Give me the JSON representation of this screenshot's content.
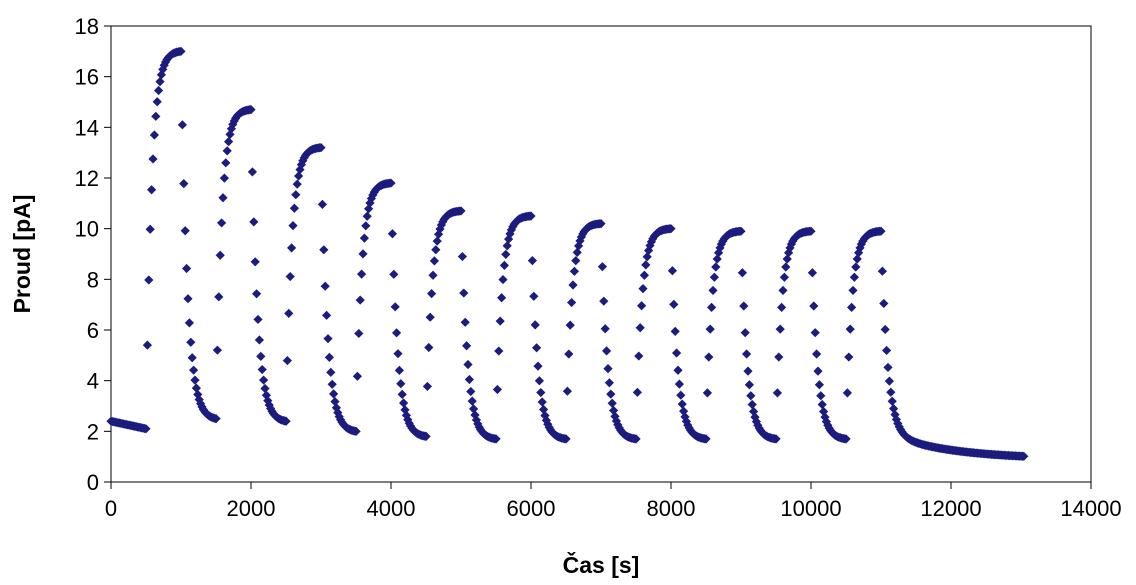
{
  "chart_data": {
    "type": "scatter",
    "title": "",
    "xlabel": "Čas [s]",
    "ylabel": "Proud [pA]",
    "xlim": [
      0,
      14000
    ],
    "ylim": [
      0,
      18
    ],
    "xticks": [
      0,
      2000,
      4000,
      6000,
      8000,
      10000,
      12000,
      14000
    ],
    "yticks": [
      0,
      2,
      4,
      6,
      8,
      10,
      12,
      14,
      16,
      18
    ],
    "grid": false,
    "legend": "none",
    "marker": "diamond",
    "color": "#1c1c7e",
    "baseline": {
      "x_start": 0,
      "x_end": 500,
      "y_start": 2.4,
      "y_end": 2.1
    },
    "cycles": [
      {
        "on_start": 500,
        "on_end": 1000,
        "peak": 17.0,
        "off_end": 1500,
        "trough": 2.5
      },
      {
        "on_start": 1500,
        "on_end": 2000,
        "peak": 14.7,
        "off_end": 2500,
        "trough": 2.4
      },
      {
        "on_start": 2500,
        "on_end": 3000,
        "peak": 13.2,
        "off_end": 3500,
        "trough": 2.0
      },
      {
        "on_start": 3500,
        "on_end": 4000,
        "peak": 11.8,
        "off_end": 4500,
        "trough": 1.8
      },
      {
        "on_start": 4500,
        "on_end": 5000,
        "peak": 10.7,
        "off_end": 5500,
        "trough": 1.7
      },
      {
        "on_start": 5500,
        "on_end": 6000,
        "peak": 10.5,
        "off_end": 6500,
        "trough": 1.7
      },
      {
        "on_start": 6500,
        "on_end": 7000,
        "peak": 10.2,
        "off_end": 7500,
        "trough": 1.7
      },
      {
        "on_start": 7500,
        "on_end": 8000,
        "peak": 10.0,
        "off_end": 8500,
        "trough": 1.7
      },
      {
        "on_start": 8500,
        "on_end": 9000,
        "peak": 9.9,
        "off_end": 9500,
        "trough": 1.7
      },
      {
        "on_start": 9500,
        "on_end": 10000,
        "peak": 9.9,
        "off_end": 10500,
        "trough": 1.7
      },
      {
        "on_start": 10500,
        "on_end": 11000,
        "peak": 9.9,
        "off_end": 13050,
        "trough": 0.9
      }
    ],
    "rise_tau": 80,
    "decay_tau": 90,
    "sample_interval": 20
  }
}
